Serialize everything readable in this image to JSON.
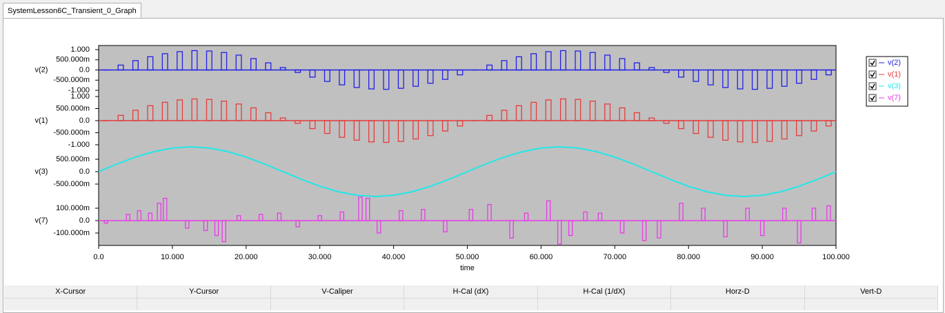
{
  "tab": {
    "title": "SystemLesson6C_Transient_0_Graph"
  },
  "chart_data": [
    {
      "type": "pulse",
      "ylim": [
        -1.1,
        1.1
      ],
      "yticks": [
        {
          "value": 1,
          "label": "1.000"
        },
        {
          "value": 0.5,
          "label": "500.000m"
        },
        {
          "value": 0,
          "label": "0.0"
        },
        {
          "value": -0.5,
          "label": "-500.000m"
        },
        {
          "value": -1,
          "label": "-1.000"
        }
      ],
      "series": [
        {
          "name": "v(2)",
          "color": "#1f1fe8",
          "x": [
            1,
            3,
            5,
            7,
            9,
            11,
            13,
            15,
            17,
            19,
            21,
            23,
            25,
            27,
            29,
            31,
            33,
            35,
            37,
            39,
            41,
            43,
            45,
            47,
            49,
            51,
            53,
            55,
            57,
            59,
            61,
            63,
            65,
            67,
            69,
            71,
            73,
            75,
            77,
            79,
            81,
            83,
            85,
            87,
            89,
            91,
            93,
            95,
            97,
            99
          ],
          "values": [
            0,
            0.24,
            0.46,
            0.65,
            0.8,
            0.9,
            0.95,
            0.93,
            0.86,
            0.73,
            0.56,
            0.35,
            0.12,
            -0.12,
            -0.35,
            -0.56,
            -0.73,
            -0.86,
            -0.93,
            -0.95,
            -0.9,
            -0.8,
            -0.65,
            -0.46,
            -0.24,
            0,
            0.24,
            0.46,
            0.65,
            0.8,
            0.9,
            0.95,
            0.93,
            0.86,
            0.73,
            0.56,
            0.35,
            0.12,
            -0.12,
            -0.35,
            -0.56,
            -0.73,
            -0.86,
            -0.93,
            -0.95,
            -0.9,
            -0.8,
            -0.65,
            -0.46,
            -0.24
          ]
        }
      ]
    },
    {
      "type": "pulse",
      "ylim": [
        -1.1,
        1.1
      ],
      "yticks": [
        {
          "value": 1,
          "label": "1.000"
        },
        {
          "value": 0.5,
          "label": "500.000m"
        },
        {
          "value": 0,
          "label": "0.0"
        },
        {
          "value": -0.5,
          "label": "-500.000m"
        },
        {
          "value": -1,
          "label": "-1.000"
        }
      ],
      "series": [
        {
          "name": "v(1)",
          "color": "#e83a3a",
          "x": [
            1,
            3,
            5,
            7,
            9,
            11,
            13,
            15,
            17,
            19,
            21,
            23,
            25,
            27,
            29,
            31,
            33,
            35,
            37,
            39,
            41,
            43,
            45,
            47,
            49,
            51,
            53,
            55,
            57,
            59,
            61,
            63,
            65,
            67,
            69,
            71,
            73,
            75,
            77,
            79,
            81,
            83,
            85,
            87,
            89,
            91,
            93,
            95,
            97,
            99
          ],
          "values": [
            0,
            0.22,
            0.43,
            0.62,
            0.76,
            0.86,
            0.9,
            0.88,
            0.81,
            0.69,
            0.53,
            0.33,
            0.11,
            -0.11,
            -0.33,
            -0.53,
            -0.69,
            -0.81,
            -0.88,
            -0.9,
            -0.86,
            -0.76,
            -0.62,
            -0.43,
            -0.22,
            0,
            0.22,
            0.43,
            0.62,
            0.76,
            0.86,
            0.9,
            0.88,
            0.81,
            0.69,
            0.53,
            0.33,
            0.11,
            -0.11,
            -0.33,
            -0.53,
            -0.69,
            -0.81,
            -0.88,
            -0.9,
            -0.86,
            -0.76,
            -0.62,
            -0.43,
            -0.22
          ]
        }
      ]
    },
    {
      "type": "line",
      "ylim": [
        -1.1,
        1.1
      ],
      "yticks": [
        {
          "value": 0.5,
          "label": "500.000m"
        },
        {
          "value": 0,
          "label": "0.0"
        },
        {
          "value": -0.5,
          "label": "-500.000m"
        }
      ],
      "series": [
        {
          "name": "v(3)",
          "color": "#1fe8e8",
          "x": [
            0,
            2.5,
            5,
            7.5,
            10,
            12.5,
            15,
            17.5,
            20,
            22.5,
            25,
            27.5,
            30,
            32.5,
            35,
            37.5,
            40,
            42.5,
            45,
            47.5,
            50,
            52.5,
            55,
            57.5,
            60,
            62.5,
            65,
            67.5,
            70,
            72.5,
            75,
            77.5,
            80,
            82.5,
            85,
            87.5,
            90,
            92.5,
            95,
            97.5,
            100
          ],
          "values": [
            0,
            0.309,
            0.588,
            0.809,
            0.951,
            1,
            0.951,
            0.809,
            0.588,
            0.309,
            0,
            -0.309,
            -0.588,
            -0.809,
            -0.951,
            -1,
            -0.951,
            -0.809,
            -0.588,
            -0.309,
            0,
            0.309,
            0.588,
            0.809,
            0.951,
            1,
            0.951,
            0.809,
            0.588,
            0.309,
            0,
            -0.309,
            -0.588,
            -0.809,
            -0.951,
            -1,
            -0.951,
            -0.809,
            -0.588,
            -0.309,
            0
          ]
        }
      ]
    },
    {
      "type": "pulse",
      "ylim": [
        -0.2,
        0.2
      ],
      "yticks": [
        {
          "value": 0.1,
          "label": "100.000m"
        },
        {
          "value": 0,
          "label": "0.0"
        },
        {
          "value": -0.1,
          "label": "-100.000m"
        }
      ],
      "xlim": [
        0,
        100
      ],
      "xlabel": "time",
      "xticks": [
        {
          "value": 0,
          "label": "0.0"
        },
        {
          "value": 10,
          "label": "10.000"
        },
        {
          "value": 20,
          "label": "20.000"
        },
        {
          "value": 30,
          "label": "30.000"
        },
        {
          "value": 40,
          "label": "40.000"
        },
        {
          "value": 50,
          "label": "50.000"
        },
        {
          "value": 60,
          "label": "60.000"
        },
        {
          "value": 70,
          "label": "70.000"
        },
        {
          "value": 80,
          "label": "80.000"
        },
        {
          "value": 90,
          "label": "90.000"
        },
        {
          "value": 100,
          "label": "100.000"
        }
      ],
      "series": [
        {
          "name": "v(7)",
          "color": "#e83ae8",
          "x": [
            1,
            4,
            5.5,
            7,
            8.2,
            9,
            12,
            14.5,
            16,
            17,
            19,
            22,
            24.5,
            27,
            30,
            33,
            35.5,
            36.5,
            38,
            41,
            44,
            47,
            50.5,
            53,
            56,
            58,
            61,
            62.5,
            64,
            66,
            68,
            71,
            74,
            76,
            79,
            82,
            85,
            88,
            90,
            93,
            95,
            97,
            99
          ],
          "values": [
            -0.02,
            0.05,
            0.08,
            0.06,
            0.14,
            0.18,
            -0.06,
            -0.08,
            -0.12,
            -0.17,
            0.04,
            0.05,
            0.06,
            -0.05,
            0.04,
            0.07,
            0.19,
            0.18,
            -0.1,
            0.08,
            0.09,
            -0.09,
            0.09,
            0.13,
            -0.14,
            0.06,
            0.16,
            -0.19,
            -0.12,
            0.07,
            0.06,
            -0.1,
            -0.16,
            -0.14,
            0.14,
            0.1,
            -0.13,
            0.1,
            -0.12,
            0.1,
            -0.18,
            0.1,
            0.12
          ]
        }
      ]
    }
  ],
  "cursor_table": {
    "headers": [
      "X-Cursor",
      "Y-Cursor",
      "V-Caliper",
      "H-Cal (dX)",
      "H-Cal (1/dX)",
      "Horz-D",
      "Vert-D"
    ]
  }
}
